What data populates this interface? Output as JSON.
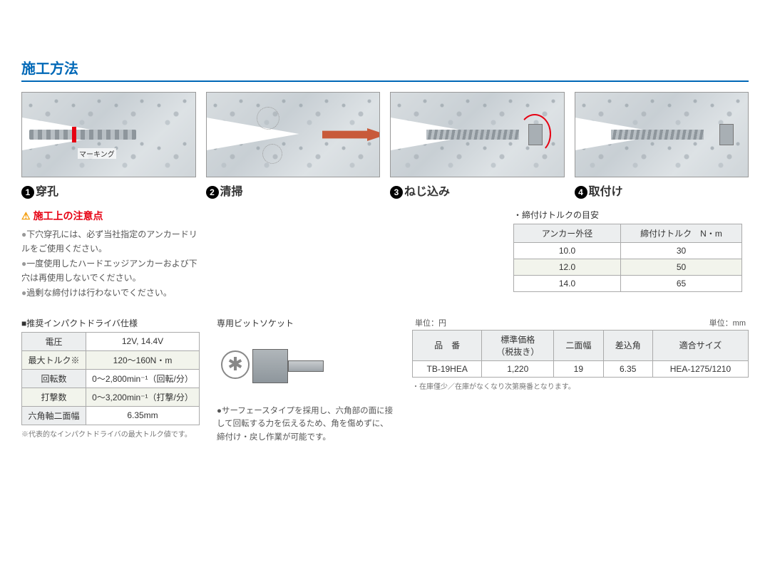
{
  "title": "施工方法",
  "steps": [
    {
      "num": "1",
      "label": "穿孔",
      "marking": "マーキング"
    },
    {
      "num": "2",
      "label": "清掃"
    },
    {
      "num": "3",
      "label": "ねじ込み"
    },
    {
      "num": "4",
      "label": "取付け"
    }
  ],
  "caution": {
    "heading": "施工上の注意点",
    "items": [
      "下穴穿孔には、必ず当社指定のアンカードリルをご使用ください。",
      "一度使用したハードエッジアンカーおよび下穴は再使用しないでください。",
      "過剰な締付けは行わないでください。"
    ]
  },
  "torque": {
    "title": "・締付けトルクの目安",
    "headers": [
      "アンカー外径",
      "締付けトルク　N・m"
    ],
    "rows": [
      {
        "d": "10.0",
        "t": "30",
        "hl": false
      },
      {
        "d": "12.0",
        "t": "50",
        "hl": true
      },
      {
        "d": "14.0",
        "t": "65",
        "hl": false
      }
    ]
  },
  "driver": {
    "title": "■推奨インパクトドライバ仕様",
    "rows": [
      {
        "k": "電圧",
        "v": "12V, 14.4V",
        "alt": false
      },
      {
        "k": "最大トルク※",
        "v": "120～160N・m",
        "alt": true
      },
      {
        "k": "回転数",
        "v": "0～2,800min⁻¹（回転/分）",
        "alt": false
      },
      {
        "k": "打撃数",
        "v": "0～3,200min⁻¹（打撃/分）",
        "alt": true
      },
      {
        "k": "六角軸二面幅",
        "v": "6.35mm",
        "alt": false
      }
    ],
    "note": "※代表的なインパクトドライバの最大トルク値です。"
  },
  "socket": {
    "title": "専用ビットソケット",
    "desc": "●サーフェースタイプを採用し、六角部の面に接して回転する力を伝えるため、角を傷めずに、締付け・戻し作業が可能です。"
  },
  "product": {
    "unit_left": "単位：円",
    "unit_right": "単位：mm",
    "headers": [
      "品　番",
      "標準価格\n（税抜き）",
      "二面幅",
      "差込角",
      "適合サイズ"
    ],
    "row": [
      "TB-19HEA",
      "1,220",
      "19",
      "6.35",
      "HEA-1275/1210"
    ],
    "note": "・在庫僅少／在庫がなくなり次第廃番となります。"
  }
}
